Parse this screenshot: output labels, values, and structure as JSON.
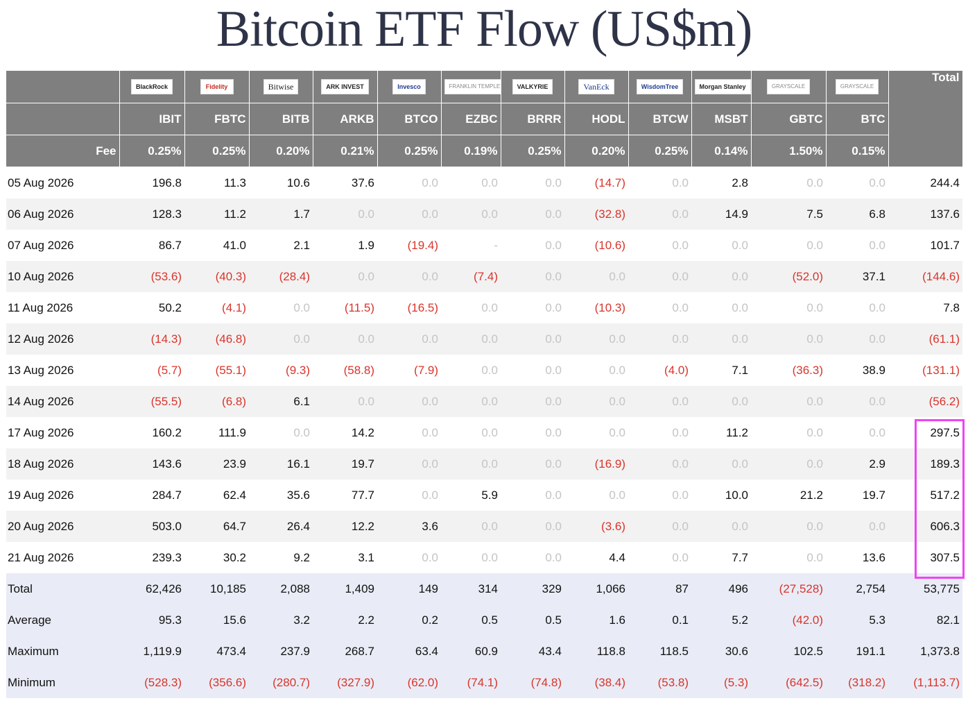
{
  "title": "Bitcoin ETF Flow (US$m)",
  "colors": {
    "header_bg": "#7f7f7f",
    "negative": "#d9342b",
    "zero": "#c4c4c4",
    "summary_bg": "#e9ecf6",
    "highlight": "#ee44f2"
  },
  "header": {
    "total_label": "Total",
    "fee_label": "Fee",
    "funds": [
      {
        "logo": "BlackRock",
        "ticker": "IBIT",
        "fee": "0.25%"
      },
      {
        "logo": "Fidelity",
        "ticker": "FBTC",
        "fee": "0.25%"
      },
      {
        "logo": "Bitwise",
        "ticker": "BITB",
        "fee": "0.20%"
      },
      {
        "logo": "ARK INVEST",
        "ticker": "ARKB",
        "fee": "0.21%"
      },
      {
        "logo": "Invesco",
        "ticker": "BTCO",
        "fee": "0.25%"
      },
      {
        "logo": "FRANKLIN TEMPLETON",
        "ticker": "EZBC",
        "fee": "0.19%"
      },
      {
        "logo": "VALKYRIE",
        "ticker": "BRRR",
        "fee": "0.25%"
      },
      {
        "logo": "VanEck",
        "ticker": "HODL",
        "fee": "0.20%"
      },
      {
        "logo": "WisdomTree",
        "ticker": "BTCW",
        "fee": "0.25%"
      },
      {
        "logo": "Morgan Stanley",
        "ticker": "MSBT",
        "fee": "0.14%"
      },
      {
        "logo": "GRAYSCALE",
        "ticker": "GBTC",
        "fee": "1.50%"
      },
      {
        "logo": "GRAYSCALE",
        "ticker": "BTC",
        "fee": "0.15%"
      }
    ]
  },
  "rows": [
    {
      "date": "05 Aug 2026",
      "values": [
        "196.8",
        "11.3",
        "10.6",
        "37.6",
        "0.0",
        "0.0",
        "0.0",
        "(14.7)",
        "0.0",
        "2.8",
        "0.0",
        "0.0"
      ],
      "total": "244.4"
    },
    {
      "date": "06 Aug 2026",
      "values": [
        "128.3",
        "11.2",
        "1.7",
        "0.0",
        "0.0",
        "0.0",
        "0.0",
        "(32.8)",
        "0.0",
        "14.9",
        "7.5",
        "6.8"
      ],
      "total": "137.6"
    },
    {
      "date": "07 Aug 2026",
      "values": [
        "86.7",
        "41.0",
        "2.1",
        "1.9",
        "(19.4)",
        "-",
        "0.0",
        "(10.6)",
        "0.0",
        "0.0",
        "0.0",
        "0.0"
      ],
      "total": "101.7"
    },
    {
      "date": "10 Aug 2026",
      "values": [
        "(53.6)",
        "(40.3)",
        "(28.4)",
        "0.0",
        "0.0",
        "(7.4)",
        "0.0",
        "0.0",
        "0.0",
        "0.0",
        "(52.0)",
        "37.1"
      ],
      "total": "(144.6)"
    },
    {
      "date": "11 Aug 2026",
      "values": [
        "50.2",
        "(4.1)",
        "0.0",
        "(11.5)",
        "(16.5)",
        "0.0",
        "0.0",
        "(10.3)",
        "0.0",
        "0.0",
        "0.0",
        "0.0"
      ],
      "total": "7.8"
    },
    {
      "date": "12 Aug 2026",
      "values": [
        "(14.3)",
        "(46.8)",
        "0.0",
        "0.0",
        "0.0",
        "0.0",
        "0.0",
        "0.0",
        "0.0",
        "0.0",
        "0.0",
        "0.0"
      ],
      "total": "(61.1)"
    },
    {
      "date": "13 Aug 2026",
      "values": [
        "(5.7)",
        "(55.1)",
        "(9.3)",
        "(58.8)",
        "(7.9)",
        "0.0",
        "0.0",
        "0.0",
        "(4.0)",
        "7.1",
        "(36.3)",
        "38.9"
      ],
      "total": "(131.1)"
    },
    {
      "date": "14 Aug 2026",
      "values": [
        "(55.5)",
        "(6.8)",
        "6.1",
        "0.0",
        "0.0",
        "0.0",
        "0.0",
        "0.0",
        "0.0",
        "0.0",
        "0.0",
        "0.0"
      ],
      "total": "(56.2)"
    },
    {
      "date": "17 Aug 2026",
      "values": [
        "160.2",
        "111.9",
        "0.0",
        "14.2",
        "0.0",
        "0.0",
        "0.0",
        "0.0",
        "0.0",
        "11.2",
        "0.0",
        "0.0"
      ],
      "total": "297.5"
    },
    {
      "date": "18 Aug 2026",
      "values": [
        "143.6",
        "23.9",
        "16.1",
        "19.7",
        "0.0",
        "0.0",
        "0.0",
        "(16.9)",
        "0.0",
        "0.0",
        "0.0",
        "2.9"
      ],
      "total": "189.3"
    },
    {
      "date": "19 Aug 2026",
      "values": [
        "284.7",
        "62.4",
        "35.6",
        "77.7",
        "0.0",
        "5.9",
        "0.0",
        "0.0",
        "0.0",
        "10.0",
        "21.2",
        "19.7"
      ],
      "total": "517.2"
    },
    {
      "date": "20 Aug 2026",
      "values": [
        "503.0",
        "64.7",
        "26.4",
        "12.2",
        "3.6",
        "0.0",
        "0.0",
        "(3.6)",
        "0.0",
        "0.0",
        "0.0",
        "0.0"
      ],
      "total": "606.3"
    },
    {
      "date": "21 Aug 2026",
      "values": [
        "239.3",
        "30.2",
        "9.2",
        "3.1",
        "0.0",
        "0.0",
        "0.0",
        "4.4",
        "0.0",
        "7.7",
        "0.0",
        "13.6"
      ],
      "total": "307.5"
    }
  ],
  "summary": [
    {
      "label": "Total",
      "values": [
        "62,426",
        "10,185",
        "2,088",
        "1,409",
        "149",
        "314",
        "329",
        "1,066",
        "87",
        "496",
        "(27,528)",
        "2,754"
      ],
      "total": "53,775"
    },
    {
      "label": "Average",
      "values": [
        "95.3",
        "15.6",
        "3.2",
        "2.2",
        "0.2",
        "0.5",
        "0.5",
        "1.6",
        "0.1",
        "5.2",
        "(42.0)",
        "5.3"
      ],
      "total": "82.1"
    },
    {
      "label": "Maximum",
      "values": [
        "1,119.9",
        "473.4",
        "237.9",
        "268.7",
        "63.4",
        "60.9",
        "43.4",
        "118.8",
        "118.5",
        "30.6",
        "102.5",
        "191.1"
      ],
      "total": "1,373.8"
    },
    {
      "label": "Minimum",
      "values": [
        "(528.3)",
        "(356.6)",
        "(280.7)",
        "(327.9)",
        "(62.0)",
        "(74.1)",
        "(74.8)",
        "(38.4)",
        "(53.8)",
        "(5.3)",
        "(642.5)",
        "(318.2)"
      ],
      "total": "(1,113.7)"
    }
  ]
}
